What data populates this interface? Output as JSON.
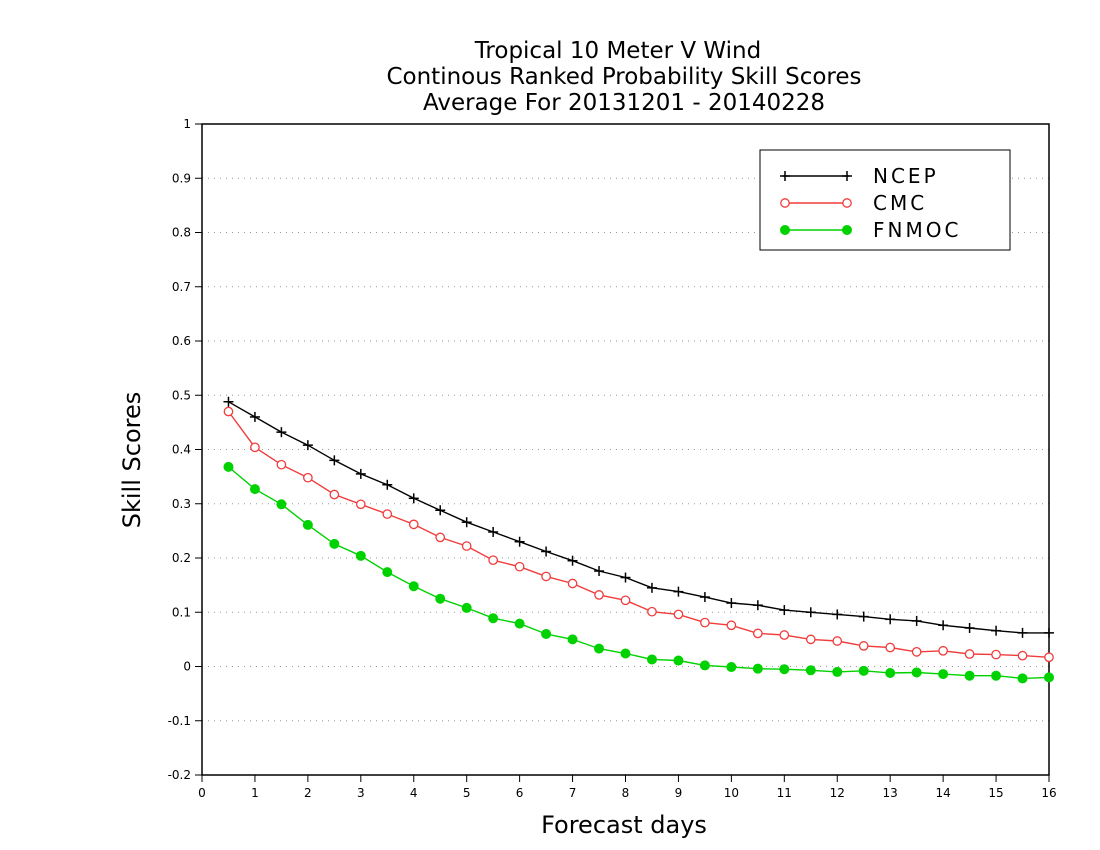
{
  "chart_data": {
    "type": "line",
    "title_lines": [
      "Tropical 10 Meter V Wind",
      "Continous Ranked Probability Skill Scores",
      "Average For 20131201 - 20140228"
    ],
    "xlabel": "Forecast days",
    "ylabel": "Skill Scores",
    "xlim": [
      0,
      16
    ],
    "ylim": [
      -0.2,
      1
    ],
    "xticks": [
      0,
      1,
      2,
      3,
      4,
      5,
      6,
      7,
      8,
      9,
      10,
      11,
      12,
      13,
      14,
      15,
      16
    ],
    "yticks": [
      -0.2,
      -0.1,
      0,
      0.1,
      0.2,
      0.3,
      0.4,
      0.5,
      0.6,
      0.7,
      0.8,
      0.9,
      1
    ],
    "ytick_labels": [
      "-0.2",
      "-0.1",
      "0",
      "0.1",
      "0.2",
      "0.3",
      "0.4",
      "0.5",
      "0.6",
      "0.7",
      "0.8",
      "0.9",
      "1"
    ],
    "grid": "horizontal dotted",
    "legend_position": "top-right",
    "x": [
      0.5,
      1,
      1.5,
      2,
      2.5,
      3,
      3.5,
      4,
      4.5,
      5,
      5.5,
      6,
      6.5,
      7,
      7.5,
      8,
      8.5,
      9,
      9.5,
      10,
      10.5,
      11,
      11.5,
      12,
      12.5,
      13,
      13.5,
      14,
      14.5,
      15,
      15.5,
      16
    ],
    "series": [
      {
        "name": "NCEP",
        "color": "#000000",
        "marker": "plus",
        "values": [
          0.488,
          0.46,
          0.432,
          0.408,
          0.38,
          0.355,
          0.335,
          0.31,
          0.288,
          0.266,
          0.248,
          0.23,
          0.212,
          0.195,
          0.176,
          0.164,
          0.145,
          0.138,
          0.128,
          0.117,
          0.113,
          0.104,
          0.1,
          0.096,
          0.092,
          0.087,
          0.084,
          0.076,
          0.071,
          0.066,
          0.062,
          0.062
        ]
      },
      {
        "name": "CMC",
        "color": "#f03c3c",
        "marker": "open-circle",
        "values": [
          0.47,
          0.404,
          0.372,
          0.348,
          0.317,
          0.299,
          0.281,
          0.262,
          0.238,
          0.222,
          0.196,
          0.184,
          0.166,
          0.153,
          0.132,
          0.122,
          0.101,
          0.096,
          0.081,
          0.076,
          0.061,
          0.058,
          0.05,
          0.047,
          0.038,
          0.035,
          0.027,
          0.029,
          0.023,
          0.022,
          0.02,
          0.017
        ]
      },
      {
        "name": "FNMOC",
        "color": "#00d200",
        "marker": "filled-circle",
        "values": [
          0.368,
          0.327,
          0.299,
          0.261,
          0.226,
          0.204,
          0.174,
          0.148,
          0.125,
          0.108,
          0.089,
          0.079,
          0.06,
          0.05,
          0.033,
          0.024,
          0.013,
          0.011,
          0.002,
          -0.001,
          -0.004,
          -0.005,
          -0.007,
          -0.01,
          -0.008,
          -0.012,
          -0.011,
          -0.014,
          -0.017,
          -0.017,
          -0.022,
          -0.02
        ]
      }
    ]
  }
}
